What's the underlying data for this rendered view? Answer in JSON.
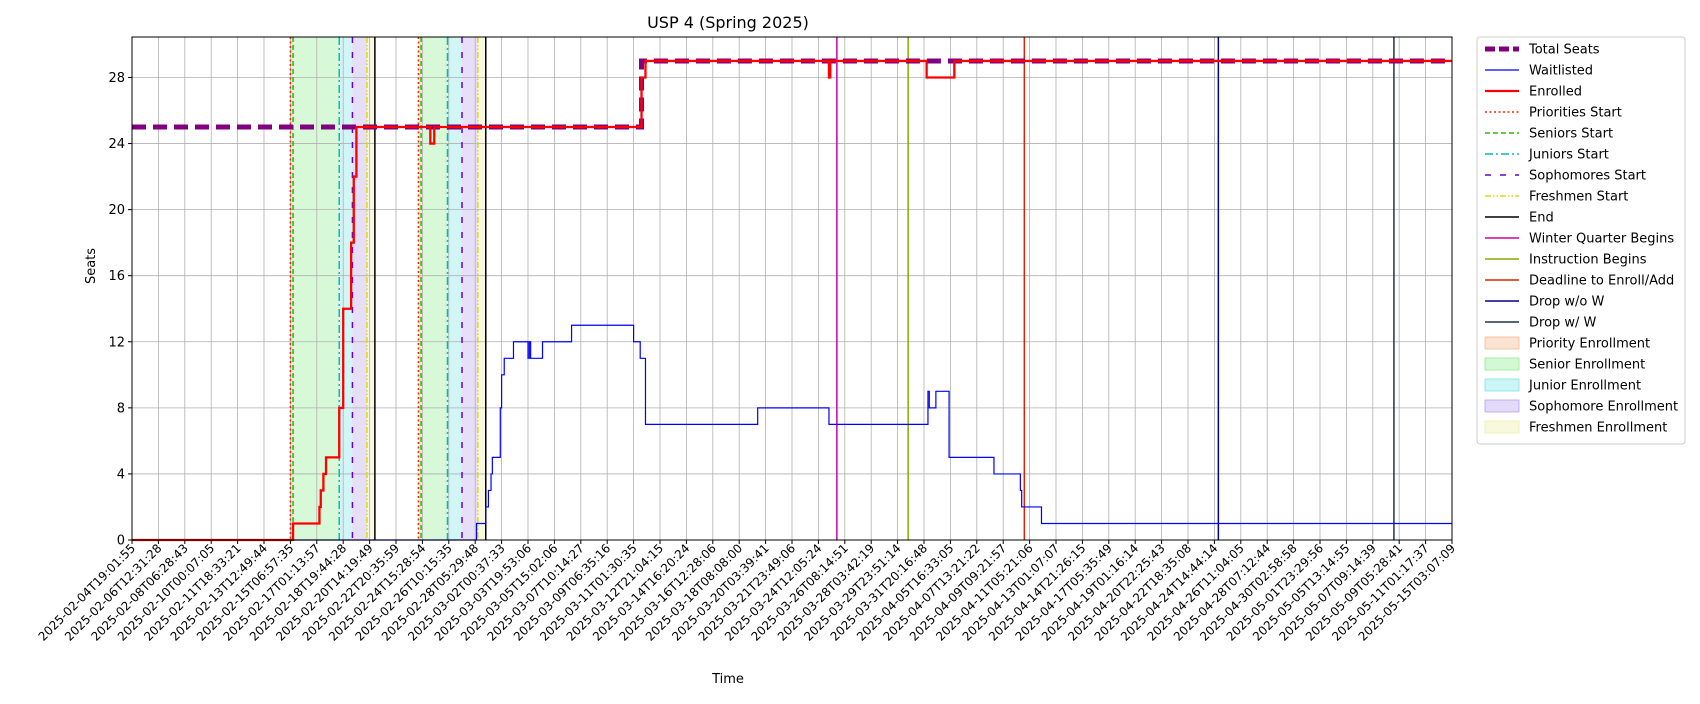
{
  "chart_data": {
    "type": "line",
    "title": "USP 4 (Spring 2025)",
    "xlabel": "Time",
    "ylabel": "Seats",
    "ylim": [
      0,
      30.45
    ],
    "yticks": [
      0,
      4,
      8,
      12,
      16,
      20,
      24,
      28
    ],
    "grid": true,
    "legend_position": "outside-right",
    "x_ticks": [
      "2025-02-04T19:01:55",
      "2025-02-06T12:31:28",
      "2025-02-08T06:28:43",
      "2025-02-10T00:07:05",
      "2025-02-11T18:33:21",
      "2025-02-13T12:49:44",
      "2025-02-15T06:57:35",
      "2025-02-17T01:13:57",
      "2025-02-18T19:44:28",
      "2025-02-20T14:19:49",
      "2025-02-22T20:35:59",
      "2025-02-24T15:28:54",
      "2025-02-26T10:15:35",
      "2025-02-28T05:29:48",
      "2025-03-02T00:37:33",
      "2025-03-03T19:53:06",
      "2025-03-05T15:02:06",
      "2025-03-07T10:14:27",
      "2025-03-09T06:35:16",
      "2025-03-11T01:30:35",
      "2025-03-12T21:04:15",
      "2025-03-14T16:20:24",
      "2025-03-16T12:28:06",
      "2025-03-18T08:08:00",
      "2025-03-20T03:39:41",
      "2025-03-21T23:49:06",
      "2025-03-24T12:05:24",
      "2025-03-26T08:14:51",
      "2025-03-28T03:42:19",
      "2025-03-29T23:51:14",
      "2025-03-31T20:16:48",
      "2025-04-05T16:33:05",
      "2025-04-07T13:21:22",
      "2025-04-09T09:21:57",
      "2025-04-11T05:21:06",
      "2025-04-13T01:07:07",
      "2025-04-14T21:26:15",
      "2025-04-17T05:35:49",
      "2025-04-19T01:16:14",
      "2025-04-20T22:25:43",
      "2025-04-22T18:35:08",
      "2025-04-24T14:44:14",
      "2025-04-26T11:04:05",
      "2025-04-28T07:12:44",
      "2025-04-30T02:58:58",
      "2025-05-01T23:29:56",
      "2025-05-05T13:14:55",
      "2025-05-07T09:14:39",
      "2025-05-09T05:28:41",
      "2025-05-11T01:17:37",
      "2025-05-15T03:07:09"
    ],
    "series": [
      {
        "name": "Total Seats",
        "color": "#800080",
        "style": "dashed-thick",
        "points": [
          [
            0,
            25
          ],
          [
            19.3,
            25
          ],
          [
            19.3,
            29
          ],
          [
            50,
            29
          ]
        ]
      },
      {
        "name": "Waitlisted",
        "color": "#0000ff",
        "style": "solid-thin",
        "points": [
          [
            0,
            0
          ],
          [
            12,
            0
          ],
          [
            12,
            0
          ],
          [
            13.05,
            0
          ],
          [
            13.05,
            1
          ],
          [
            13.4,
            1
          ],
          [
            13.4,
            2
          ],
          [
            13.5,
            2
          ],
          [
            13.5,
            3
          ],
          [
            13.6,
            3
          ],
          [
            13.6,
            4
          ],
          [
            13.65,
            4
          ],
          [
            13.65,
            5
          ],
          [
            13.95,
            5
          ],
          [
            13.95,
            8
          ],
          [
            14,
            8
          ],
          [
            14,
            10
          ],
          [
            14.1,
            10
          ],
          [
            14.1,
            11
          ],
          [
            14.45,
            11
          ],
          [
            14.45,
            12
          ],
          [
            15,
            12
          ],
          [
            15,
            11
          ],
          [
            15.05,
            11
          ],
          [
            15.05,
            12
          ],
          [
            15.1,
            12
          ],
          [
            15.1,
            11
          ],
          [
            15.55,
            11
          ],
          [
            15.55,
            12
          ],
          [
            16.65,
            12
          ],
          [
            16.65,
            13
          ],
          [
            19,
            13
          ],
          [
            19,
            12
          ],
          [
            19.25,
            12
          ],
          [
            19.25,
            11
          ],
          [
            19.45,
            11
          ],
          [
            19.45,
            7
          ],
          [
            23.7,
            7
          ],
          [
            23.7,
            8
          ],
          [
            26.4,
            8
          ],
          [
            26.4,
            7
          ],
          [
            30.15,
            7
          ],
          [
            30.15,
            9
          ],
          [
            30.2,
            9
          ],
          [
            30.2,
            8
          ],
          [
            30.45,
            8
          ],
          [
            30.45,
            9
          ],
          [
            30.95,
            9
          ],
          [
            30.95,
            5
          ],
          [
            32.65,
            5
          ],
          [
            32.65,
            4
          ],
          [
            33.65,
            4
          ],
          [
            33.65,
            3
          ],
          [
            33.7,
            3
          ],
          [
            33.7,
            2
          ],
          [
            34.45,
            2
          ],
          [
            34.45,
            1
          ],
          [
            50,
            1
          ]
        ]
      },
      {
        "name": "Enrolled",
        "color": "#ff0000",
        "style": "solid-thick",
        "points": [
          [
            0,
            0
          ],
          [
            6.1,
            0
          ],
          [
            6.1,
            1
          ],
          [
            7.1,
            1
          ],
          [
            7.1,
            2
          ],
          [
            7.15,
            2
          ],
          [
            7.15,
            3
          ],
          [
            7.25,
            3
          ],
          [
            7.25,
            4
          ],
          [
            7.35,
            4
          ],
          [
            7.35,
            5
          ],
          [
            7.85,
            5
          ],
          [
            7.85,
            8
          ],
          [
            8.0,
            8
          ],
          [
            8.0,
            14
          ],
          [
            8.3,
            14
          ],
          [
            8.3,
            18
          ],
          [
            8.4,
            18
          ],
          [
            8.4,
            22
          ],
          [
            8.5,
            22
          ],
          [
            8.5,
            25
          ],
          [
            11.3,
            25
          ],
          [
            11.3,
            24
          ],
          [
            11.45,
            24
          ],
          [
            11.45,
            25
          ],
          [
            19.3,
            25
          ],
          [
            19.3,
            28
          ],
          [
            19.45,
            28
          ],
          [
            19.45,
            29
          ],
          [
            26.4,
            29
          ],
          [
            26.4,
            28
          ],
          [
            26.45,
            28
          ],
          [
            26.45,
            29
          ],
          [
            30.1,
            29
          ],
          [
            30.1,
            28
          ],
          [
            31.15,
            28
          ],
          [
            31.15,
            29
          ],
          [
            50,
            29
          ]
        ]
      }
    ],
    "vertical_lines": [
      {
        "name": "Priorities Start",
        "color": "#ff2200",
        "style": "dotted",
        "x": [
          6.0,
          10.85
        ]
      },
      {
        "name": "Seniors Start",
        "color": "#22bb00",
        "style": "dashed",
        "x": [
          6.1,
          10.95
        ]
      },
      {
        "name": "Juniors Start",
        "color": "#00bbbb",
        "style": "dashdot",
        "x": [
          7.85,
          11.95
        ]
      },
      {
        "name": "Sophomores Start",
        "color": "#6600cc",
        "style": "loosedash",
        "x": [
          8.35,
          12.5
        ]
      },
      {
        "name": "Freshmen Start",
        "color": "#dddd00",
        "style": "dashdotdot",
        "x": [
          8.9,
          13.1
        ]
      },
      {
        "name": "End",
        "color": "#000000",
        "style": "solid",
        "x": [
          9.2,
          13.4
        ]
      },
      {
        "name": "Winter Quarter Begins",
        "color": "#cc00aa",
        "style": "solid",
        "x": [
          26.7
        ]
      },
      {
        "name": "Instruction Begins",
        "color": "#88aa00",
        "style": "solid",
        "x": [
          29.4
        ]
      },
      {
        "name": "Deadline to Enroll/Add",
        "color": "#dd2200",
        "style": "solid",
        "x": [
          33.8
        ]
      },
      {
        "name": "Drop w/o W",
        "color": "#000088",
        "style": "solid",
        "x": [
          41.15
        ]
      },
      {
        "name": "Drop w/ W",
        "color": "#223344",
        "style": "solid",
        "x": [
          47.8
        ]
      }
    ],
    "spans": [
      {
        "name": "Priority Enrollment",
        "color": "#f5b88e",
        "ranges": [
          [
            6.0,
            6.1
          ],
          [
            10.85,
            10.95
          ]
        ]
      },
      {
        "name": "Senior Enrollment",
        "color": "#90ee90",
        "ranges": [
          [
            6.1,
            7.85
          ],
          [
            10.95,
            11.95
          ]
        ]
      },
      {
        "name": "Junior Enrollment",
        "color": "#7fe5e5",
        "ranges": [
          [
            7.85,
            8.35
          ],
          [
            11.95,
            12.5
          ]
        ]
      },
      {
        "name": "Sophomore Enrollment",
        "color": "#b9a0ee",
        "ranges": [
          [
            8.35,
            8.9
          ],
          [
            12.5,
            13.1
          ]
        ]
      },
      {
        "name": "Freshmen Enrollment",
        "color": "#eeeeaa",
        "ranges": [
          [
            8.9,
            9.2
          ],
          [
            13.1,
            13.4
          ]
        ]
      }
    ]
  }
}
